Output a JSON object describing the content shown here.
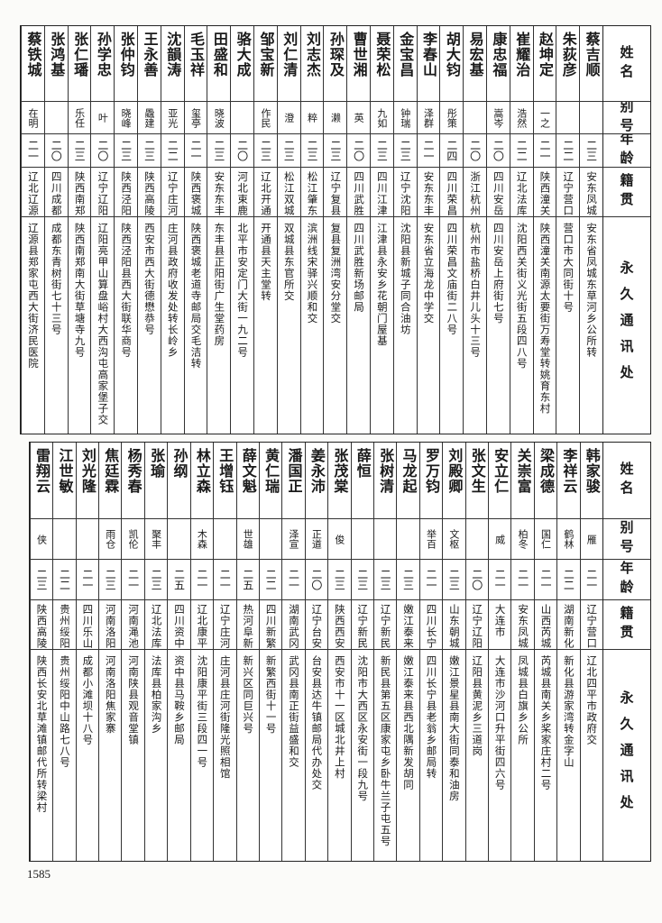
{
  "headers": {
    "name": "姓名",
    "alias": "别号",
    "age": "年龄",
    "native": "籍贯",
    "address": "永久通讯处"
  },
  "top_table": [
    {
      "name": "蔡吉顺",
      "alias": "",
      "age": "二三",
      "native": "安东凤城",
      "address": "安东省凤城东草河乡公所转"
    },
    {
      "name": "朱荻彦",
      "alias": "",
      "age": "二二",
      "native": "辽宁营口",
      "address": "营口市大同街十号"
    },
    {
      "name": "赵坤定",
      "alias": "一之",
      "age": "二一",
      "native": "陕西潼关",
      "address": "陕西潼关南源太要街万寿堂转姚育东村"
    },
    {
      "name": "崔耀治",
      "alias": "浩然",
      "age": "二二",
      "native": "辽北法库",
      "address": "沈阳西关街义光街五段四八号"
    },
    {
      "name": "康忠福",
      "alias": "嵩岑",
      "age": "二〇",
      "native": "四川安岳",
      "address": "四川安岳上府街七号"
    },
    {
      "name": "易宏基",
      "alias": "",
      "age": "二〇",
      "native": "浙江杭州",
      "address": "杭州市盐桥白井儿头十三号"
    },
    {
      "name": "胡大钧",
      "alias": "彤策",
      "age": "二四",
      "native": "四川荣昌",
      "address": "四川荣昌文庙街二八号"
    },
    {
      "name": "李春山",
      "alias": "泽群",
      "age": "二一",
      "native": "安东东丰",
      "address": "安东省立海龙中学交"
    },
    {
      "name": "金宝昌",
      "alias": "钟瑞",
      "age": "二三",
      "native": "辽宁沈阳",
      "address": "沈阳县新城子同合油坊"
    },
    {
      "name": "聂荣松",
      "alias": "九如",
      "age": "二三",
      "native": "四川江津",
      "address": "江津县永安乡花朝门屋基"
    },
    {
      "name": "曹世湘",
      "alias": "英",
      "age": "二〇",
      "native": "四川武胜",
      "address": "四川武胜新场邮局"
    },
    {
      "name": "孙琛及",
      "alias": "濑",
      "age": "二三",
      "native": "辽宁复县",
      "address": "复县复洲湾安分堂交"
    },
    {
      "name": "刘志杰",
      "alias": "粹",
      "age": "二三",
      "native": "松江肇东",
      "address": "滨洲线宋驿兴顺和交"
    },
    {
      "name": "刘仁清",
      "alias": "澄",
      "age": "二三",
      "native": "松江双城",
      "address": "双城县东官所交"
    },
    {
      "name": "邹宝新",
      "alias": "作民",
      "age": "二三",
      "native": "辽北开通",
      "address": "开通县天主堂转"
    },
    {
      "name": "骆大成",
      "alias": "",
      "age": "二〇",
      "native": "河北束鹿",
      "address": "北平市安定门大街一九二号"
    },
    {
      "name": "田盛和",
      "alias": "晓波",
      "age": "二三",
      "native": "安东东丰",
      "address": "东丰县正阳街广生堂药房"
    },
    {
      "name": "毛玉祥",
      "alias": "玺亭",
      "age": "二一",
      "native": "陕西褒城",
      "address": "陕西褒城老道寺邮局交毛洁转"
    },
    {
      "name": "沈韻涛",
      "alias": "亚光",
      "age": "二二",
      "native": "辽宁庄河",
      "address": "庄河县政府收发处转长岭乡"
    },
    {
      "name": "王永善",
      "alias": "飍建",
      "age": "二三",
      "native": "陕西高陵",
      "address": "西安市西大街德懋恭号"
    },
    {
      "name": "张仲钧",
      "alias": "晓峰",
      "age": "二三",
      "native": "陕西泾阳",
      "address": "陕西泾阳县西大街联华商号"
    },
    {
      "name": "孙学忠",
      "alias": "叶",
      "age": "二〇",
      "native": "辽宁辽阳",
      "address": "辽阳亮甲山算盘峪村大西沟屯高家堡子交"
    },
    {
      "name": "张仁璠",
      "alias": "乐任",
      "age": "二三",
      "native": "陕西南郑",
      "address": "陕西南郑南大街草塘寺九号"
    },
    {
      "name": "张鸿基",
      "alias": "",
      "age": "二〇",
      "native": "四川成都",
      "address": "成都东青树街七十三号"
    },
    {
      "name": "蔡铁城",
      "alias": "在明",
      "age": "二一",
      "native": "辽北辽源",
      "address": "辽源县郑家屯西大街济民医院"
    }
  ],
  "bottom_table": [
    {
      "name": "韩家骏",
      "alias": "雁",
      "age": "二一",
      "native": "辽宁营口",
      "address": "辽北四平市政府交"
    },
    {
      "name": "李祥云",
      "alias": "鹤林",
      "age": "二二",
      "native": "湖南新化",
      "address": "新化县游家湾转金字山"
    },
    {
      "name": "梁成德",
      "alias": "国仁",
      "age": "二一",
      "native": "山西芮城",
      "address": "芮城县南关乡桨家庄村二号"
    },
    {
      "name": "关崇富",
      "alias": "柏冬",
      "age": "二一",
      "native": "安东凤城",
      "address": "凤城县白旗乡公所"
    },
    {
      "name": "安立仁",
      "alias": "威",
      "age": "二一",
      "native": "大连市",
      "address": "大连市沙河口升平街四六号"
    },
    {
      "name": "张文生",
      "alias": "",
      "age": "二〇",
      "native": "辽宁辽阳",
      "address": "辽阳县黄泥乡三道岗"
    },
    {
      "name": "刘殿卿",
      "alias": "文枢",
      "age": "二三",
      "native": "山东朝城",
      "address": "嫩江景星县南大街同泰和油房"
    },
    {
      "name": "罗万钧",
      "alias": "举百",
      "age": "二一",
      "native": "四川长宁",
      "address": "四川长宁县老翁乡邮局转"
    },
    {
      "name": "马龙起",
      "alias": "",
      "age": "二三",
      "native": "嫩江泰来",
      "address": "嫩江泰来县西北隅新发胡同"
    },
    {
      "name": "张树清",
      "alias": "",
      "age": "二三",
      "native": "辽宁新民",
      "address": "新民县第五区康家屯乡卧牛兰子屯五号"
    },
    {
      "name": "薛恒",
      "alias": "",
      "age": "二三",
      "native": "辽宁新民",
      "address": "沈阳市大西区永安街一段九号"
    },
    {
      "name": "张茂棠",
      "alias": "俊",
      "age": "二三",
      "native": "陕西西安",
      "address": "西安市十一区城北井上村"
    },
    {
      "name": "姜永沛",
      "alias": "正道",
      "age": "二〇",
      "native": "辽宁台安",
      "address": "台安县达牛镇邮局代办处交"
    },
    {
      "name": "潘国正",
      "alias": "泽宣",
      "age": "二一",
      "native": "湖南武冈",
      "address": "武冈县南正街益盛和交"
    },
    {
      "name": "黄仁瑞",
      "alias": "",
      "age": "二二",
      "native": "四川新繁",
      "address": "新繁西街十一号"
    },
    {
      "name": "薛文魁",
      "alias": "世雄",
      "age": "二五",
      "native": "热河阜新",
      "address": "新兴区同巨兴号"
    },
    {
      "name": "王增钰",
      "alias": "",
      "age": "二一",
      "native": "辽宁庄河",
      "address": "庄河县庄河街隆光照相馆"
    },
    {
      "name": "林立森",
      "alias": "木森",
      "age": "二一",
      "native": "辽北康平",
      "address": "沈阳康平街三段四一号"
    },
    {
      "name": "孙纲",
      "alias": "",
      "age": "二五",
      "native": "四川资中",
      "address": "资中县马鞍乡邮局"
    },
    {
      "name": "张瑜",
      "alias": "聚丰",
      "age": "二三",
      "native": "辽北法库",
      "address": "法库县柏家沟乡"
    },
    {
      "name": "杨秀春",
      "alias": "凯伦",
      "age": "二一",
      "native": "河南渑池",
      "address": "河南陕县观音堂镇"
    },
    {
      "name": "焦廷霖",
      "alias": "雨仓",
      "age": "二三",
      "native": "河南洛阳",
      "address": "河南洛阳焦家寨"
    },
    {
      "name": "刘光隆",
      "alias": "",
      "age": "二一",
      "native": "四川乐山",
      "address": "成都小滩坝十八号"
    },
    {
      "name": "江世敏",
      "alias": "",
      "age": "二二",
      "native": "贵州绥阳",
      "address": "贵州绥阳中山路七八号"
    },
    {
      "name": "雷翔云",
      "alias": "侠",
      "age": "二三",
      "native": "陕西高陵",
      "address": "陕西长安北草滩镇邮代所转梁村"
    }
  ],
  "page_number": "1585"
}
